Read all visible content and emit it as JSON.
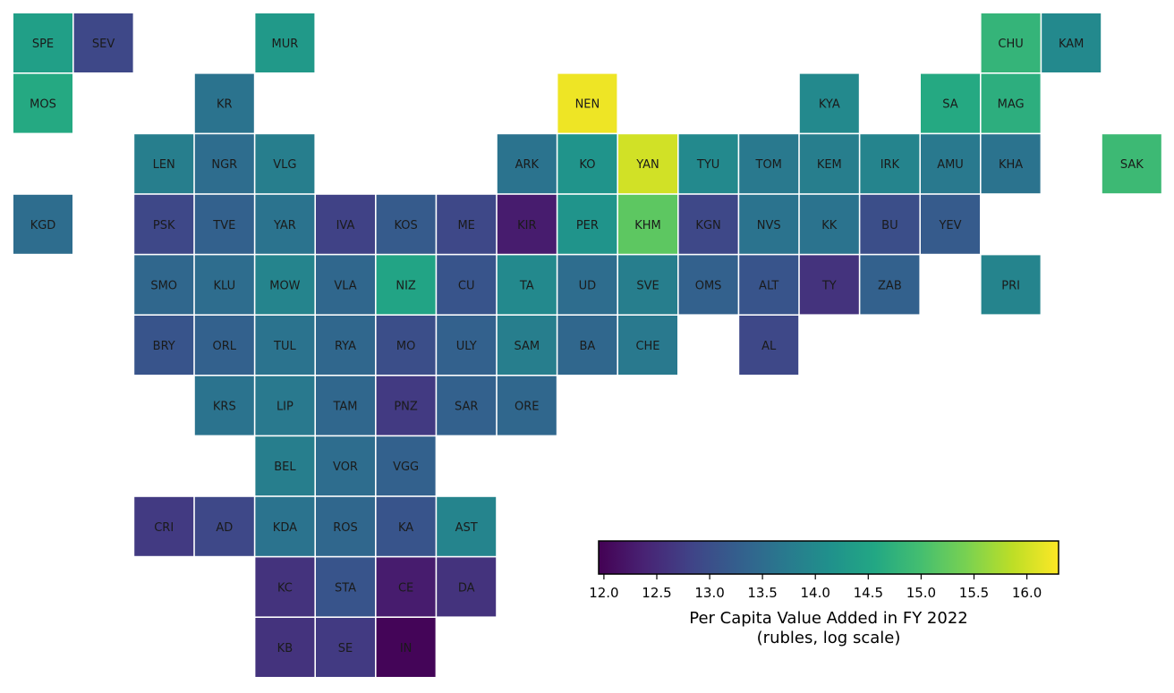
{
  "chart_data": {
    "type": "heatmap",
    "colorbar": {
      "label_line1": "Per Capita Value Added in FY 2022",
      "label_line2": "(rubles, log scale)",
      "vmin": 11.95,
      "vmax": 16.3,
      "ticks": [
        "12.0",
        "12.5",
        "13.0",
        "13.5",
        "14.0",
        "14.5",
        "15.0",
        "15.5",
        "16.0"
      ],
      "colormap": "viridis"
    },
    "regions": [
      {
        "code": "SPE",
        "row": 0,
        "col": 0,
        "value": 14.4
      },
      {
        "code": "SEV",
        "row": 0,
        "col": 1,
        "value": 12.9
      },
      {
        "code": "MUR",
        "row": 0,
        "col": 4,
        "value": 14.3
      },
      {
        "code": "CHU",
        "row": 0,
        "col": 16,
        "value": 14.8
      },
      {
        "code": "KAM",
        "row": 0,
        "col": 17,
        "value": 14.0
      },
      {
        "code": "MOS",
        "row": 1,
        "col": 0,
        "value": 14.6
      },
      {
        "code": "KR",
        "row": 1,
        "col": 3,
        "value": 13.6
      },
      {
        "code": "NEN",
        "row": 1,
        "col": 9,
        "value": 16.2
      },
      {
        "code": "KYA",
        "row": 1,
        "col": 13,
        "value": 14.0
      },
      {
        "code": "SA",
        "row": 1,
        "col": 15,
        "value": 14.6
      },
      {
        "code": "MAG",
        "row": 1,
        "col": 16,
        "value": 14.7
      },
      {
        "code": "LEN",
        "row": 2,
        "col": 2,
        "value": 13.8
      },
      {
        "code": "NGR",
        "row": 2,
        "col": 3,
        "value": 13.5
      },
      {
        "code": "VLG",
        "row": 2,
        "col": 4,
        "value": 13.8
      },
      {
        "code": "ARK",
        "row": 2,
        "col": 8,
        "value": 13.6
      },
      {
        "code": "KO",
        "row": 2,
        "col": 9,
        "value": 14.2
      },
      {
        "code": "YAN",
        "row": 2,
        "col": 10,
        "value": 16.0
      },
      {
        "code": "TYU",
        "row": 2,
        "col": 11,
        "value": 14.0
      },
      {
        "code": "TOM",
        "row": 2,
        "col": 12,
        "value": 13.7
      },
      {
        "code": "KEM",
        "row": 2,
        "col": 13,
        "value": 13.8
      },
      {
        "code": "IRK",
        "row": 2,
        "col": 14,
        "value": 13.9
      },
      {
        "code": "AMU",
        "row": 2,
        "col": 15,
        "value": 13.7
      },
      {
        "code": "KHA",
        "row": 2,
        "col": 16,
        "value": 13.6
      },
      {
        "code": "SAK",
        "row": 2,
        "col": 18,
        "value": 14.9
      },
      {
        "code": "KGD",
        "row": 3,
        "col": 0,
        "value": 13.5
      },
      {
        "code": "PSK",
        "row": 3,
        "col": 2,
        "value": 12.9
      },
      {
        "code": "TVE",
        "row": 3,
        "col": 3,
        "value": 13.3
      },
      {
        "code": "YAR",
        "row": 3,
        "col": 4,
        "value": 13.6
      },
      {
        "code": "IVA",
        "row": 3,
        "col": 5,
        "value": 12.8
      },
      {
        "code": "KOS",
        "row": 3,
        "col": 6,
        "value": 13.2
      },
      {
        "code": "ME",
        "row": 3,
        "col": 7,
        "value": 12.9
      },
      {
        "code": "KIR",
        "row": 3,
        "col": 8,
        "value": 12.3
      },
      {
        "code": "PER",
        "row": 3,
        "col": 9,
        "value": 14.2
      },
      {
        "code": "KHM",
        "row": 3,
        "col": 10,
        "value": 15.2
      },
      {
        "code": "KGN",
        "row": 3,
        "col": 11,
        "value": 12.9
      },
      {
        "code": "NVS",
        "row": 3,
        "col": 12,
        "value": 13.6
      },
      {
        "code": "KK",
        "row": 3,
        "col": 13,
        "value": 13.6
      },
      {
        "code": "BU",
        "row": 3,
        "col": 14,
        "value": 13.0
      },
      {
        "code": "YEV",
        "row": 3,
        "col": 15,
        "value": 13.2
      },
      {
        "code": "SMO",
        "row": 4,
        "col": 2,
        "value": 13.4
      },
      {
        "code": "KLU",
        "row": 4,
        "col": 3,
        "value": 13.5
      },
      {
        "code": "MOW",
        "row": 4,
        "col": 4,
        "value": 13.9
      },
      {
        "code": "VLA",
        "row": 4,
        "col": 5,
        "value": 13.4
      },
      {
        "code": "NIZ",
        "row": 4,
        "col": 6,
        "value": 14.5
      },
      {
        "code": "CU",
        "row": 4,
        "col": 7,
        "value": 13.1
      },
      {
        "code": "TA",
        "row": 4,
        "col": 8,
        "value": 14.0
      },
      {
        "code": "UD",
        "row": 4,
        "col": 9,
        "value": 13.5
      },
      {
        "code": "SVE",
        "row": 4,
        "col": 10,
        "value": 13.8
      },
      {
        "code": "OMS",
        "row": 4,
        "col": 11,
        "value": 13.3
      },
      {
        "code": "ALT",
        "row": 4,
        "col": 12,
        "value": 13.1
      },
      {
        "code": "TY",
        "row": 4,
        "col": 13,
        "value": 12.6
      },
      {
        "code": "ZAB",
        "row": 4,
        "col": 14,
        "value": 13.3
      },
      {
        "code": "PRI",
        "row": 4,
        "col": 16,
        "value": 13.9
      },
      {
        "code": "BRY",
        "row": 5,
        "col": 2,
        "value": 13.1
      },
      {
        "code": "ORL",
        "row": 5,
        "col": 3,
        "value": 13.3
      },
      {
        "code": "TUL",
        "row": 5,
        "col": 4,
        "value": 13.6
      },
      {
        "code": "RYA",
        "row": 5,
        "col": 5,
        "value": 13.4
      },
      {
        "code": "MO",
        "row": 5,
        "col": 6,
        "value": 13.0
      },
      {
        "code": "ULY",
        "row": 5,
        "col": 7,
        "value": 13.3
      },
      {
        "code": "SAM",
        "row": 5,
        "col": 8,
        "value": 13.8
      },
      {
        "code": "BA",
        "row": 5,
        "col": 9,
        "value": 13.4
      },
      {
        "code": "CHE",
        "row": 5,
        "col": 10,
        "value": 13.7
      },
      {
        "code": "AL",
        "row": 5,
        "col": 12,
        "value": 12.9
      },
      {
        "code": "KRS",
        "row": 6,
        "col": 3,
        "value": 13.6
      },
      {
        "code": "LIP",
        "row": 6,
        "col": 4,
        "value": 13.7
      },
      {
        "code": "TAM",
        "row": 6,
        "col": 5,
        "value": 13.4
      },
      {
        "code": "PNZ",
        "row": 6,
        "col": 6,
        "value": 12.7
      },
      {
        "code": "SAR",
        "row": 6,
        "col": 7,
        "value": 13.3
      },
      {
        "code": "ORE",
        "row": 6,
        "col": 8,
        "value": 13.4
      },
      {
        "code": "BEL",
        "row": 7,
        "col": 4,
        "value": 13.8
      },
      {
        "code": "VOR",
        "row": 7,
        "col": 5,
        "value": 13.5
      },
      {
        "code": "VGG",
        "row": 7,
        "col": 6,
        "value": 13.3
      },
      {
        "code": "CRI",
        "row": 8,
        "col": 2,
        "value": 12.7
      },
      {
        "code": "AD",
        "row": 8,
        "col": 3,
        "value": 12.9
      },
      {
        "code": "KDA",
        "row": 8,
        "col": 4,
        "value": 13.6
      },
      {
        "code": "ROS",
        "row": 8,
        "col": 5,
        "value": 13.4
      },
      {
        "code": "KA",
        "row": 8,
        "col": 6,
        "value": 13.1
      },
      {
        "code": "AST",
        "row": 8,
        "col": 7,
        "value": 13.9
      },
      {
        "code": "KC",
        "row": 9,
        "col": 4,
        "value": 12.6
      },
      {
        "code": "STA",
        "row": 9,
        "col": 5,
        "value": 13.1
      },
      {
        "code": "CE",
        "row": 9,
        "col": 6,
        "value": 12.3
      },
      {
        "code": "DA",
        "row": 9,
        "col": 7,
        "value": 12.6
      },
      {
        "code": "KB",
        "row": 10,
        "col": 4,
        "value": 12.6
      },
      {
        "code": "SE",
        "row": 10,
        "col": 5,
        "value": 12.7
      },
      {
        "code": "IN",
        "row": 10,
        "col": 6,
        "value": 12.0
      }
    ]
  }
}
